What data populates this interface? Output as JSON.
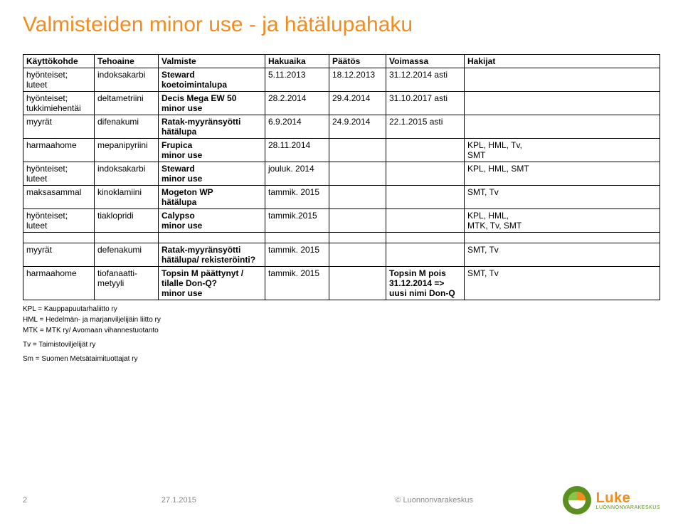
{
  "title": "Valmisteiden minor use - ja hätälupahaku",
  "columns": [
    "Käyttökohde",
    "Tehoaine",
    "Valmiste",
    "Hakuaika",
    "Päätös",
    "Voimassa",
    "Hakijat"
  ],
  "rows": [
    {
      "kohde": "hyönteiset;\nluteet",
      "teho": "indoksakarbi",
      "valm": "Steward\nkoetoimintalupa",
      "haku": "5.11.2013",
      "paatos": "18.12.2013",
      "voim": "31.12.2014 asti",
      "haki": ""
    },
    {
      "kohde": "hyönteiset;\ntukkimiehentäi",
      "teho": "deltametriini",
      "valm": "Decis Mega EW 50\nminor use",
      "haku": "28.2.2014",
      "paatos": "29.4.2014",
      "voim": "31.10.2017 asti",
      "haki": ""
    },
    {
      "kohde": "myyrät",
      "teho": "difenakumi",
      "valm": "Ratak-myyränsyötti\nhätälupa",
      "haku": "6.9.2014",
      "paatos": "24.9.2014",
      "voim": "22.1.2015 asti",
      "haki": ""
    },
    {
      "kohde": "harmaahome",
      "teho": "mepanipyriini",
      "valm": "Frupica\nminor use",
      "haku": "28.11.2014",
      "paatos": "",
      "voim": "",
      "haki": "KPL, HML, Tv,\nSMT"
    },
    {
      "kohde": "hyönteiset;\nluteet",
      "teho": "indoksakarbi",
      "valm": "Steward\nminor use",
      "haku": "jouluk. 2014",
      "paatos": "",
      "voim": "",
      "haki": "KPL, HML, SMT"
    },
    {
      "kohde": "maksasammal",
      "teho": "kinoklamiini",
      "valm": "Mogeton WP\nhätälupa",
      "haku": "tammik. 2015",
      "paatos": "",
      "voim": "",
      "haki": "SMT, Tv"
    },
    {
      "kohde": "hyönteiset;\nluteet",
      "teho": "tiaklopridi",
      "valm": "Calypso\nminor use",
      "haku": "tammik.2015",
      "paatos": "",
      "voim": "",
      "haki": "KPL, HML,\nMTK, Tv, SMT"
    },
    {
      "kohde": "myyrät",
      "teho": "defenakumi",
      "valm": "Ratak-myyränsyötti\nhätälupa/ rekisteröinti?",
      "haku": "tammik. 2015",
      "paatos": "",
      "voim": "",
      "haki": "SMT, Tv",
      "spacer": true
    },
    {
      "kohde": "harmaahome",
      "teho": "tiofanaatti-\nmetyyli",
      "valm": "Topsin M päättynyt /\ntilalle Don-Q?\nminor use",
      "haku": "tammik. 2015",
      "paatos": "",
      "voim": "Topsin M pois\n31.12.2014 =>\nuusi nimi  Don-Q",
      "haki": "SMT, Tv"
    }
  ],
  "notes": [
    "KPL = Kauppapuutarhaliitto ry",
    "HML = Hedelmän- ja marjanviljelijäin liitto ry",
    "MTK = MTK ry/ Avomaan vihannestuotanto",
    "Tv = Taimistoviljelijät ry",
    "Sm = Suomen Metsätaimituottajat ry"
  ],
  "footer": {
    "page_no": "2",
    "date": "27.1.2015",
    "copyright": "© Luonnonvarakeskus",
    "logo_main": "Luke",
    "logo_sub": "LUONNONVARAKESKUS"
  },
  "style": {
    "title_color": "#f28c1e",
    "logo_orange": "#f28c1e",
    "logo_green": "#5b8f1e"
  }
}
